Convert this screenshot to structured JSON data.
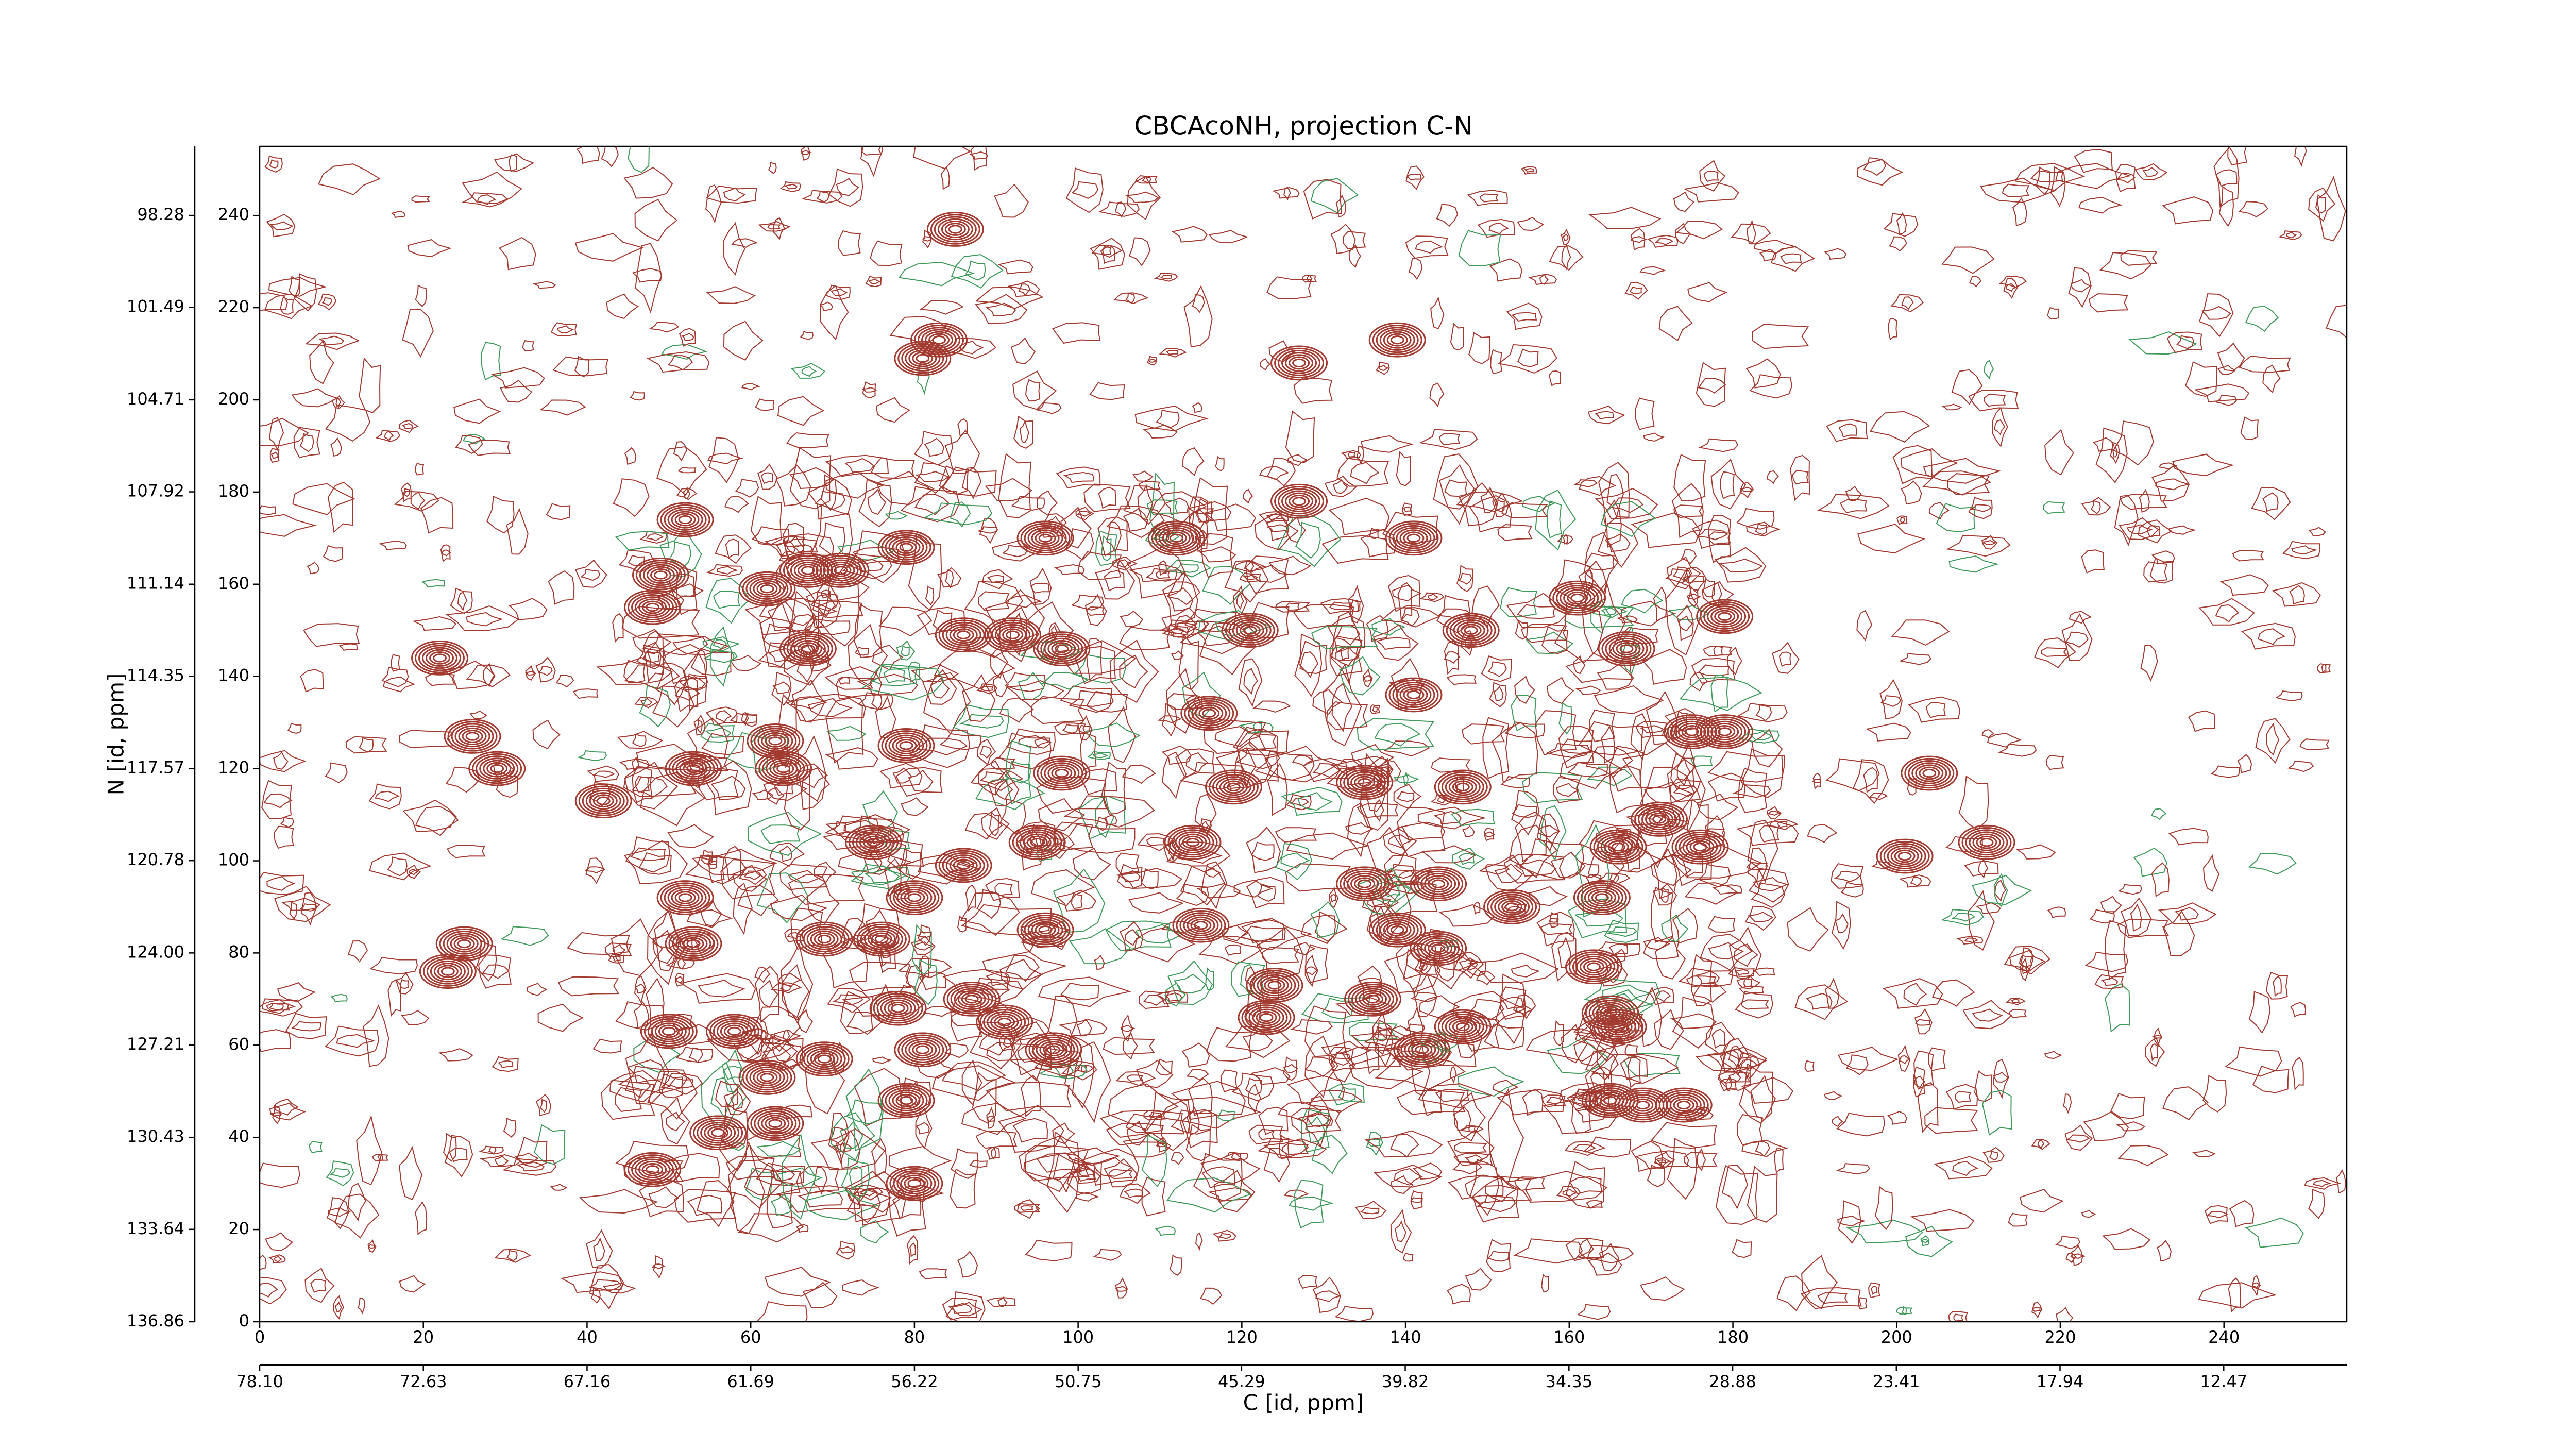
{
  "chart_data": {
    "type": "contour",
    "title": "CBCAcoNH, projection C-N",
    "xlabel": "C [id, ppm]",
    "ylabel": "N [id, ppm]",
    "xlim": [
      0,
      255
    ],
    "ylim": [
      0,
      255
    ],
    "xticks": [
      0,
      20,
      40,
      60,
      80,
      100,
      120,
      140,
      160,
      180,
      200,
      220,
      240
    ],
    "yticks": [
      0,
      20,
      40,
      60,
      80,
      100,
      120,
      140,
      160,
      180,
      200,
      220,
      240
    ],
    "x2lim": [
      78.1,
      8.36
    ],
    "x2ticks": [
      {
        "value": 78.1,
        "label": "78.10"
      },
      {
        "value": 72.63,
        "label": "72.63"
      },
      {
        "value": 67.16,
        "label": "67.16"
      },
      {
        "value": 61.69,
        "label": "61.69"
      },
      {
        "value": 56.22,
        "label": "56.22"
      },
      {
        "value": 50.75,
        "label": "50.75"
      },
      {
        "value": 45.29,
        "label": "45.29"
      },
      {
        "value": 39.82,
        "label": "39.82"
      },
      {
        "value": 34.35,
        "label": "34.35"
      },
      {
        "value": 28.88,
        "label": "28.88"
      },
      {
        "value": 23.41,
        "label": "23.41"
      },
      {
        "value": 17.94,
        "label": "17.94"
      },
      {
        "value": 12.47,
        "label": "12.47"
      }
    ],
    "y2lim": [
      136.86,
      95.87
    ],
    "y2ticks": [
      {
        "value": 136.86,
        "label": "136.86"
      },
      {
        "value": 133.64,
        "label": "133.64"
      },
      {
        "value": 130.43,
        "label": "130.43"
      },
      {
        "value": 127.21,
        "label": "127.21"
      },
      {
        "value": 124.0,
        "label": "124.00"
      },
      {
        "value": 120.78,
        "label": "120.78"
      },
      {
        "value": 117.57,
        "label": "117.57"
      },
      {
        "value": 114.35,
        "label": "114.35"
      },
      {
        "value": 111.14,
        "label": "111.14"
      },
      {
        "value": 107.92,
        "label": "107.92"
      },
      {
        "value": 104.71,
        "label": "104.71"
      },
      {
        "value": 101.49,
        "label": "101.49"
      },
      {
        "value": 98.28,
        "label": "98.28"
      }
    ],
    "color": "#a33a30",
    "negative_color": "#3f9a5a",
    "peaks": {
      "x": [
        85,
        83,
        81,
        139,
        127,
        127,
        96,
        112,
        141,
        52,
        79,
        71,
        49,
        48,
        67,
        62,
        92,
        86,
        98,
        67,
        148,
        121,
        161,
        167,
        179,
        141,
        116,
        63,
        26,
        29,
        42,
        53,
        64,
        79,
        98,
        119,
        135,
        175,
        179,
        147,
        171,
        166,
        176,
        204,
        211,
        201,
        114,
        95,
        86,
        75,
        80,
        52,
        144,
        135,
        115,
        53,
        96,
        76,
        69,
        164,
        153,
        163,
        139,
        144,
        25,
        23,
        78,
        87,
        91,
        97,
        81,
        50,
        58,
        62,
        69,
        142,
        147,
        124,
        123,
        136,
        165,
        166,
        165,
        169,
        174,
        56,
        63,
        79,
        80,
        48,
        22
      ],
      "y": [
        237,
        213,
        209,
        213,
        208,
        178,
        170,
        170,
        170,
        174,
        168,
        163,
        162,
        155,
        163,
        159,
        149,
        149,
        146,
        146,
        150,
        150,
        157,
        146,
        153,
        136,
        132,
        126,
        127,
        120,
        113,
        120,
        120,
        125,
        119,
        116,
        117,
        128,
        128,
        116,
        109,
        103,
        103,
        119,
        104,
        101,
        104,
        104,
        99,
        104,
        92,
        92,
        95,
        95,
        86,
        82,
        85,
        83,
        83,
        92,
        90,
        77,
        85,
        81,
        82,
        76,
        68,
        70,
        65,
        59,
        59,
        63,
        63,
        53,
        57,
        59,
        64,
        73,
        66,
        70,
        67,
        64,
        48,
        47,
        47,
        41,
        43,
        48,
        30,
        33,
        144
      ]
    }
  }
}
